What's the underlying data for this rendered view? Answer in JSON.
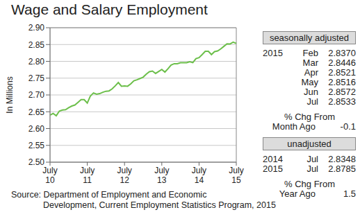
{
  "chart_data": {
    "type": "line",
    "title": "Wage and Salary Employment",
    "y_label": "In Millions",
    "categories": [
      "July 10",
      null,
      null,
      null,
      null,
      null,
      null,
      null,
      null,
      null,
      null,
      null,
      "July 11",
      null,
      null,
      null,
      null,
      null,
      null,
      null,
      null,
      null,
      null,
      null,
      "July 12",
      null,
      null,
      null,
      null,
      null,
      null,
      null,
      null,
      null,
      null,
      null,
      "July 13",
      null,
      null,
      null,
      null,
      null,
      null,
      null,
      null,
      null,
      null,
      null,
      "July 14",
      null,
      null,
      null,
      null,
      null,
      null,
      null,
      null,
      null,
      null,
      null,
      "July 15"
    ],
    "series": [
      {
        "name": "Wage and Salary Employment",
        "color": "#6cbf4a",
        "values": [
          2.64,
          2.645,
          2.638,
          2.652,
          2.655,
          2.656,
          2.662,
          2.667,
          2.67,
          2.678,
          2.686,
          2.686,
          2.676,
          2.697,
          2.706,
          2.702,
          2.704,
          2.708,
          2.711,
          2.712,
          2.718,
          2.727,
          2.737,
          2.726,
          2.727,
          2.726,
          2.733,
          2.742,
          2.745,
          2.749,
          2.753,
          2.762,
          2.769,
          2.771,
          2.764,
          2.77,
          2.776,
          2.768,
          2.778,
          2.789,
          2.793,
          2.793,
          2.796,
          2.796,
          2.796,
          2.799,
          2.796,
          2.808,
          2.811,
          2.82,
          2.83,
          2.83,
          2.82,
          2.829,
          2.831,
          2.837,
          2.8446,
          2.8521,
          2.8516,
          2.8572,
          2.8533
        ]
      }
    ],
    "ylim": [
      2.5,
      2.9
    ],
    "yticks": [
      {
        "value": 2.5,
        "label": "2.50"
      },
      {
        "value": 2.55,
        "label": "2.55"
      },
      {
        "value": 2.6,
        "label": "2.60"
      },
      {
        "value": 2.65,
        "label": "2.65"
      },
      {
        "value": 2.7,
        "label": "2.70"
      },
      {
        "value": 2.75,
        "label": "2.75"
      },
      {
        "value": 2.8,
        "label": "2.80"
      },
      {
        "value": 2.85,
        "label": "2.85"
      },
      {
        "value": 2.9,
        "label": "2.90"
      }
    ],
    "grid": true
  },
  "panel": {
    "seasonally_adjusted": {
      "heading": "seasonally adjusted",
      "year": "2015",
      "rows": [
        [
          "Feb",
          "2.8370"
        ],
        [
          "Mar",
          "2.8446"
        ],
        [
          "Apr",
          "2.8521"
        ],
        [
          "May",
          "2.8516"
        ],
        [
          "Jun",
          "2.8572"
        ],
        [
          "Jul",
          "2.8533"
        ]
      ]
    },
    "change_month": {
      "label": [
        "% Chg From",
        "Month Ago"
      ],
      "value": "-0.1"
    },
    "unadjusted": {
      "heading": "unadjusted",
      "rows": [
        [
          "2014",
          "Jul",
          "2.8348"
        ],
        [
          "2015",
          "Jul",
          "2.8785"
        ]
      ]
    },
    "change_year": {
      "label": [
        "% Chg From",
        "Year Ago"
      ],
      "value": "1.5"
    }
  },
  "source": [
    "Source: Department of Employment and Economic",
    "Development, Current Employment Statistics Program, 2015"
  ]
}
